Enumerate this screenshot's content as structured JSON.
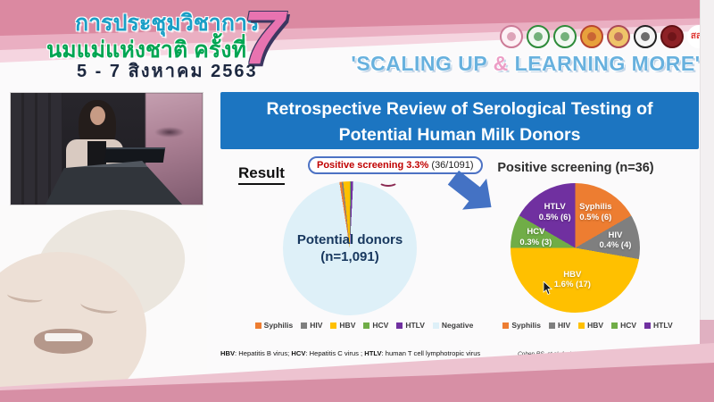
{
  "banner": {
    "title_line1": "การประชุมวิชาการ",
    "title_line2": "นมแม่แห่งชาติ ครั้งที่",
    "big_number": "7",
    "dates": "5 - 7 สิงหาคม 2563",
    "slogan_prefix": "'SCALING UP ",
    "slogan_amp": "&",
    "slogan_suffix": " LEARNING MORE'",
    "logos": [
      {
        "id": "mother-and-baby-logo",
        "fill": "#fdf1f5",
        "ring": "#cc7b97"
      },
      {
        "id": "green-medical-seal-1",
        "fill": "#f2f8f2",
        "ring": "#2e8b3a"
      },
      {
        "id": "green-medical-seal-2",
        "fill": "#f2f8f2",
        "ring": "#2e8b3a"
      },
      {
        "id": "royal-emblem-orange",
        "fill": "#e8a13c",
        "ring": "#b8452f"
      },
      {
        "id": "royal-emblem-gold",
        "fill": "#efc469",
        "ring": "#a94856"
      },
      {
        "id": "monochrome-seal",
        "fill": "#f5f5f5",
        "ring": "#222222"
      },
      {
        "id": "dark-red-seal",
        "fill": "#8d2126",
        "ring": "#5f1013"
      },
      {
        "id": "thaihealth-sss-logo",
        "fill": "#ffffff",
        "ring": "#ffffff",
        "text": "สสส",
        "fg": "#e03c38"
      }
    ]
  },
  "slide": {
    "title_line1": "Retrospective Review of Serological Testing of",
    "title_line2": "Potential Human Milk Donors",
    "result_label": "Result",
    "callout": {
      "highlight": "Positive screening 3.3%",
      "detail": " (36/1091)"
    },
    "footnote_segments": [
      {
        "term": "HBV",
        "rest": ": Hepatitis B virus; "
      },
      {
        "term": "HCV",
        "rest": ": Hepatitis C virus ; "
      },
      {
        "term": "HTLV",
        "rest": ": human T cell lymphotropic virus"
      }
    ],
    "citation": "Cohen RS, et al. Arch Dis Child Fetal Neonatal Ed. 2010;95:F118-F120."
  },
  "icons": {
    "arrow": "thick-blue-arrow-down-right",
    "cursor": "mouse-pointer"
  },
  "colors": {
    "header_blue": "#1c75c1",
    "arrow_blue": "#4472c4",
    "callout_border": "#4d72c4",
    "highlight_red": "#c00000",
    "banner_pink": "#db89a1",
    "slogan_blue": "#68b1de",
    "donor_label_navy": "#17375e"
  },
  "chart_data": [
    {
      "type": "pie",
      "title": "Potential donors (n=1,091)",
      "title_lines": [
        "Potential donors",
        "(n=1,091)"
      ],
      "total": 1091,
      "start_angle_deg": -9,
      "legend_position": "bottom",
      "annotation": "Positive screening 3.3% (36/1091)",
      "slices": [
        {
          "label": "Syphilis",
          "value": 6,
          "color": "#ed7d31"
        },
        {
          "label": "HIV",
          "value": 4,
          "color": "#7f7f7f"
        },
        {
          "label": "HBV",
          "value": 17,
          "color": "#ffc000"
        },
        {
          "label": "HCV",
          "value": 3,
          "color": "#70ad47"
        },
        {
          "label": "HTLV",
          "value": 6,
          "color": "#7030a0"
        },
        {
          "label": "Negative",
          "value": 1055,
          "color": "#def0f8"
        }
      ],
      "legend": [
        "Syphilis",
        "HIV",
        "HBV",
        "HCV",
        "HTLV",
        "Negative"
      ]
    },
    {
      "type": "pie",
      "title": "Positive screening (n=36)",
      "total": 36,
      "start_angle_deg": 0,
      "legend_position": "bottom",
      "slices": [
        {
          "label": "Syphilis",
          "value": 6,
          "pct_label": "0.5% (6)",
          "color": "#ed7d31"
        },
        {
          "label": "HIV",
          "value": 4,
          "pct_label": "0.4% (4)",
          "color": "#7f7f7f"
        },
        {
          "label": "HBV",
          "value": 17,
          "pct_label": "1.6% (17)",
          "color": "#ffc000"
        },
        {
          "label": "HCV",
          "value": 3,
          "pct_label": "0.3% (3)",
          "color": "#70ad47"
        },
        {
          "label": "HTLV",
          "value": 6,
          "pct_label": "0.5% (6)",
          "color": "#7030a0"
        }
      ],
      "legend": [
        "Syphilis",
        "HIV",
        "HBV",
        "HCV",
        "HTLV"
      ]
    }
  ]
}
